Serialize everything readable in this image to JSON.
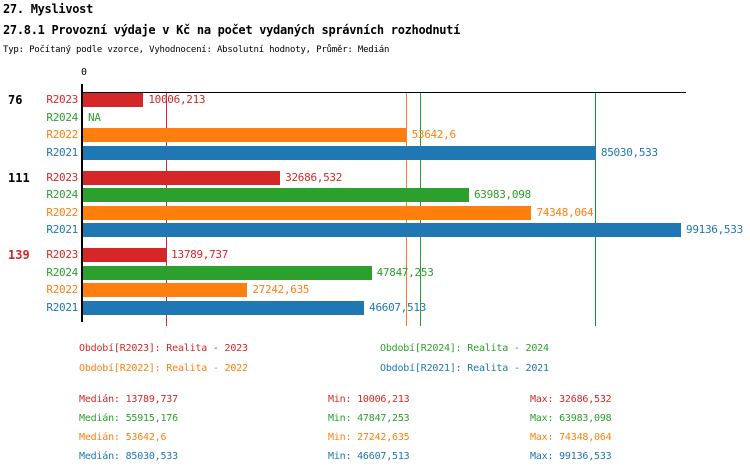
{
  "header": {
    "title": "27. Myslivost"
  },
  "colors": {
    "R2023": "#d62728",
    "R2024": "#2ca02c",
    "R2022": "#ff7f0e",
    "R2021": "#1f77b4",
    "axis": "#000000",
    "group_label_highlight": "#d62728"
  },
  "chart_data": {
    "type": "bar",
    "orientation": "horizontal",
    "title": "27. Myslivost",
    "subtitle": "27.8.1 Provozní výdaje v Kč na počet vydaných správních rozhodnutí",
    "meta": "Typ: Počítaný podle vzorce, Vyhodnocení: Absolutní hodnoty, Průměr: Medián",
    "x_axis_origin_label": "0",
    "xlim": [
      0,
      99136.533
    ],
    "grid": false,
    "legend_position": "bottom",
    "series_order": [
      "R2023",
      "R2024",
      "R2022",
      "R2021"
    ],
    "groups": [
      {
        "label": "76",
        "label_color": "#000000",
        "values": {
          "R2023": 10006.213,
          "R2024": null,
          "R2022": 53642.6,
          "R2021": 85030.533
        },
        "value_labels": {
          "R2023": "10006,213",
          "R2024": "NA",
          "R2022": "53642,6",
          "R2021": "85030,533"
        }
      },
      {
        "label": "111",
        "label_color": "#000000",
        "values": {
          "R2023": 32686.532,
          "R2024": 63983.098,
          "R2022": 74348.064,
          "R2021": 99136.533
        },
        "value_labels": {
          "R2023": "32686,532",
          "R2024": "63983,098",
          "R2022": "74348,064",
          "R2021": "99136,533"
        }
      },
      {
        "label": "139",
        "label_color": "#d62728",
        "values": {
          "R2023": 13789.737,
          "R2024": 47847.253,
          "R2022": 27242.635,
          "R2021": 46607.513
        },
        "value_labels": {
          "R2023": "13789,737",
          "R2024": "47847,253",
          "R2022": "27242,635",
          "R2021": "46607,513"
        }
      }
    ],
    "median_lines": {
      "R2023": 13789.737,
      "R2024": 55915.176,
      "R2022": 53642.6,
      "R2021": 85030.533
    },
    "legend": [
      {
        "series": "R2023",
        "text": "Období[R2023]: Realita - 2023"
      },
      {
        "series": "R2024",
        "text": "Období[R2024]: Realita - 2024"
      },
      {
        "series": "R2022",
        "text": "Období[R2022]: Realita - 2022"
      },
      {
        "series": "R2021",
        "text": "Období[R2021]: Realita - 2021"
      }
    ],
    "stats": [
      {
        "series": "R2023",
        "median": "Medián: 13789,737",
        "min": "Min: 10006,213",
        "max": "Max: 32686,532"
      },
      {
        "series": "R2024",
        "median": "Medián: 55915,176",
        "min": "Min: 47847,253",
        "max": "Max: 63983,098"
      },
      {
        "series": "R2022",
        "median": "Medián: 53642,6",
        "min": "Min: 27242,635",
        "max": "Max: 74348,064"
      },
      {
        "series": "R2021",
        "median": "Medián: 85030,533",
        "min": "Min: 46607,513",
        "max": "Max: 99136,533"
      }
    ]
  }
}
